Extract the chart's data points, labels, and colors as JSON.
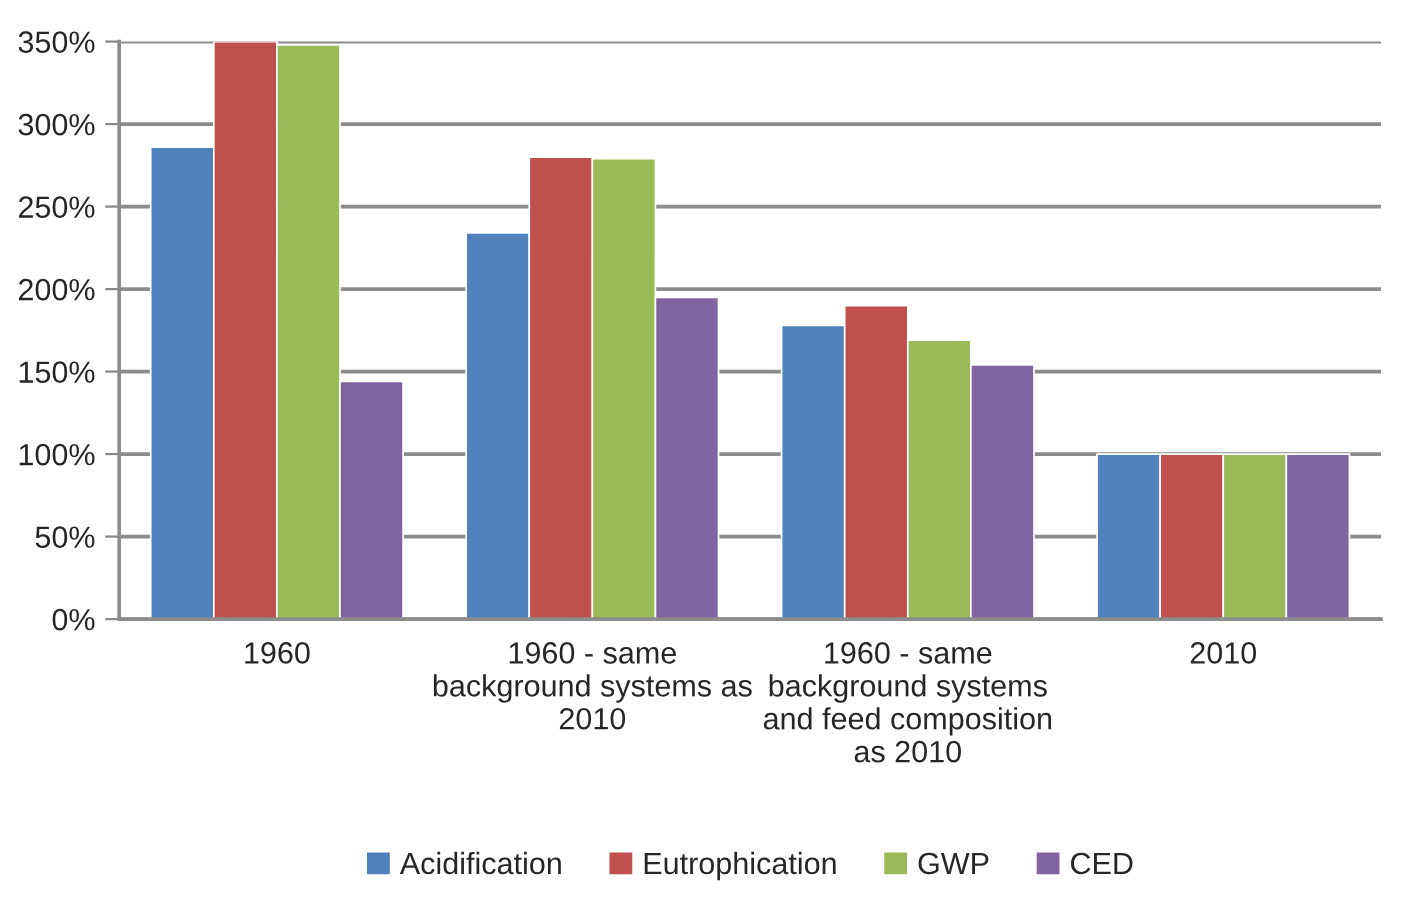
{
  "chart_data": {
    "type": "bar",
    "categories": [
      "1960",
      "1960 - same\nbackground systems as\n2010",
      "1960 - same\nbackground systems\nand feed composition\nas 2010",
      "2010"
    ],
    "series": [
      {
        "name": "Acidification",
        "color": "#4f81bd",
        "values": [
          286,
          234,
          178,
          100
        ]
      },
      {
        "name": "Eutrophication",
        "color": "#c0504d",
        "values": [
          350,
          280,
          190,
          100
        ]
      },
      {
        "name": "GWP",
        "color": "#9bbb59",
        "values": [
          348,
          279,
          169,
          100
        ]
      },
      {
        "name": "CED",
        "color": "#8064a2",
        "values": [
          144,
          195,
          154,
          100
        ]
      }
    ],
    "ylim": [
      0,
      350
    ],
    "yticks": [
      {
        "value": 0,
        "label": "0%"
      },
      {
        "value": 50,
        "label": "50%"
      },
      {
        "value": 100,
        "label": "100%"
      },
      {
        "value": 150,
        "label": "150%"
      },
      {
        "value": 200,
        "label": "200%"
      },
      {
        "value": 250,
        "label": "250%"
      },
      {
        "value": 300,
        "label": "300%"
      },
      {
        "value": 350,
        "label": "350%"
      }
    ],
    "grid": "y",
    "legend": "bottom"
  }
}
